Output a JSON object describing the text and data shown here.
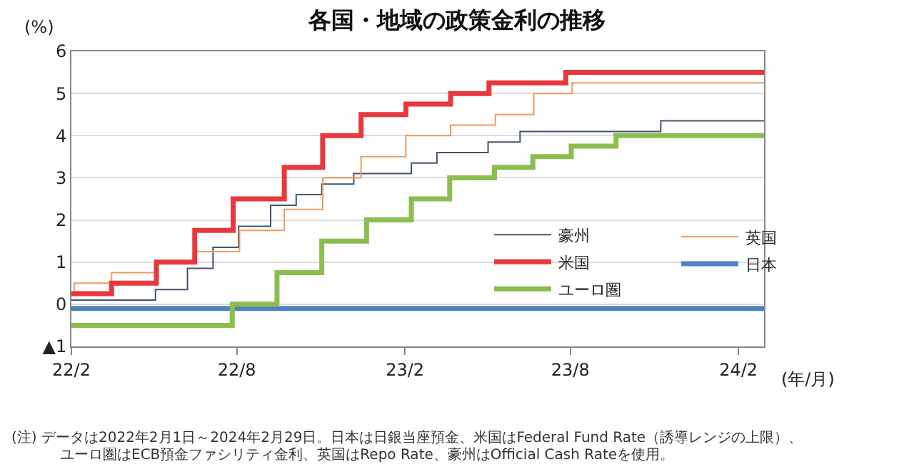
{
  "chart_data": {
    "type": "step",
    "title": "各国・地域の政策金利の推移",
    "ylabel": "(%)",
    "xlabel": "(年/月)",
    "xlim": [
      "2022-02-01",
      "2024-02-29"
    ],
    "xticks": [
      {
        "value": "2022-02-01",
        "label": "22/2"
      },
      {
        "value": "2022-08-01",
        "label": "22/8"
      },
      {
        "value": "2023-02-01",
        "label": "23/2"
      },
      {
        "value": "2023-08-01",
        "label": "23/8"
      },
      {
        "value": "2024-02-01",
        "label": "24/2"
      }
    ],
    "ylim": [
      -1,
      6
    ],
    "yticks": [
      {
        "value": -1,
        "label": "▲1"
      },
      0,
      1,
      2,
      3,
      4,
      5,
      6
    ],
    "grid": "y",
    "legend": "bottom right",
    "series": [
      {
        "name": "豪州",
        "color": "#44546a",
        "x": [
          "2022-02-01",
          "2022-05-04",
          "2022-06-08",
          "2022-07-06",
          "2022-08-03",
          "2022-09-07",
          "2022-10-05",
          "2022-11-02",
          "2022-12-07",
          "2023-02-08",
          "2023-03-08",
          "2023-05-03",
          "2023-06-07",
          "2023-11-08",
          "2024-02-29"
        ],
        "values": [
          0.1,
          0.35,
          0.85,
          1.35,
          1.85,
          2.35,
          2.6,
          2.85,
          3.1,
          3.35,
          3.6,
          3.85,
          4.1,
          4.35,
          4.35
        ]
      },
      {
        "name": "英国",
        "color": "#ed9c5c",
        "x": [
          "2022-02-01",
          "2022-02-04",
          "2022-03-17",
          "2022-05-05",
          "2022-06-16",
          "2022-08-04",
          "2022-09-22",
          "2022-11-03",
          "2022-12-15",
          "2023-02-02",
          "2023-03-23",
          "2023-05-11",
          "2023-06-22",
          "2023-08-03",
          "2024-02-29"
        ],
        "values": [
          0.25,
          0.5,
          0.75,
          1.0,
          1.25,
          1.75,
          2.25,
          3.0,
          3.5,
          4.0,
          4.25,
          4.5,
          5.0,
          5.25,
          5.25
        ]
      },
      {
        "name": "米国",
        "color": "#e8383d",
        "x": [
          "2022-02-01",
          "2022-03-17",
          "2022-05-05",
          "2022-06-16",
          "2022-07-28",
          "2022-09-22",
          "2022-11-03",
          "2022-12-15",
          "2023-02-02",
          "2023-03-23",
          "2023-05-04",
          "2023-07-27",
          "2024-02-29"
        ],
        "values": [
          0.25,
          0.5,
          1.0,
          1.75,
          2.5,
          3.25,
          4.0,
          4.5,
          4.75,
          5.0,
          5.25,
          5.5,
          5.5
        ]
      },
      {
        "name": "日本",
        "color": "#4f81bd",
        "x": [
          "2022-02-01",
          "2024-02-29"
        ],
        "values": [
          -0.1,
          -0.1
        ]
      },
      {
        "name": "ユーロ圏",
        "color": "#8cbd4f",
        "x": [
          "2022-02-01",
          "2022-07-27",
          "2022-09-14",
          "2022-11-02",
          "2022-12-21",
          "2023-02-08",
          "2023-03-22",
          "2023-05-10",
          "2023-06-21",
          "2023-08-02",
          "2023-09-20",
          "2024-02-29"
        ],
        "values": [
          -0.5,
          0.0,
          0.75,
          1.5,
          2.0,
          2.5,
          3.0,
          3.25,
          3.5,
          3.75,
          4.0,
          4.0
        ]
      }
    ],
    "annotations": [
      "(注) データは2022年2月1日～2024年2月29日。日本は日銀当座預金、米国はFederal Fund Rate（誘導レンジの上限）、",
      "ユーロ圏はECB預金ファシリティ金利、英国はRepo Rate、豪州はOfficial Cash Rateを使用。"
    ]
  }
}
